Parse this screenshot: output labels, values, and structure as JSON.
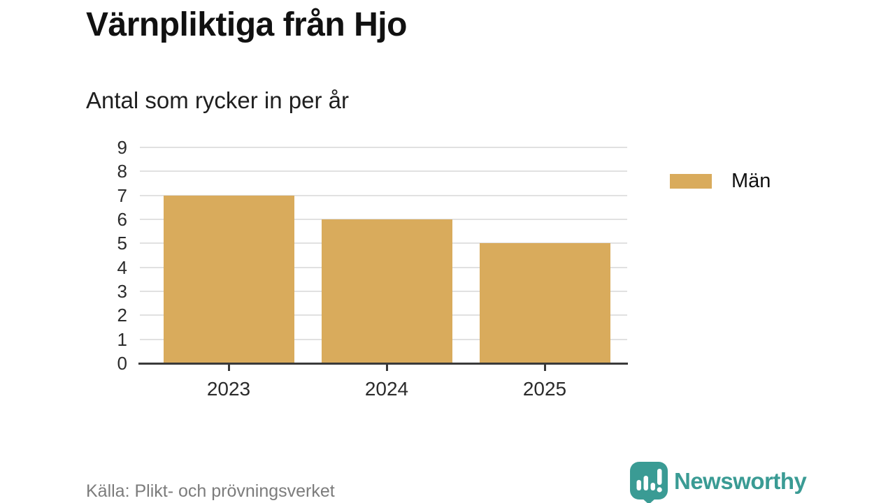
{
  "header": {
    "title": "Värnpliktiga från Hjo",
    "subtitle": "Antal som rycker in per år"
  },
  "chart_data": {
    "type": "bar",
    "categories": [
      "2023",
      "2024",
      "2025"
    ],
    "series": [
      {
        "name": "Män",
        "values": [
          7,
          6,
          5
        ]
      }
    ],
    "title": "Värnpliktiga från Hjo",
    "subtitle": "Antal som rycker in per år",
    "xlabel": "",
    "ylabel": "",
    "ylim": [
      0,
      9
    ],
    "yticks": [
      0,
      1,
      2,
      3,
      4,
      5,
      6,
      7,
      8,
      9
    ],
    "grid": true,
    "legend_position": "right",
    "bar_color": "#d9ab5c"
  },
  "legend": {
    "items": [
      {
        "label": "Män",
        "color": "#d9ab5c"
      }
    ]
  },
  "footer": {
    "source": "Källa: Plikt- och prövningsverket",
    "brand_name": "Newsworthy"
  },
  "icons": {
    "brand_icon": "newsworthy-speech-bubble-barchart-icon"
  },
  "colors": {
    "bar": "#d9ab5c",
    "axis": "#3a3a3a",
    "gridline": "#e1e1e1",
    "title_text": "#111111",
    "tick_text": "#2b2b2b",
    "muted_text": "#7c7c7c",
    "brand_teal": "#3a9b94",
    "background": "#ffffff"
  }
}
